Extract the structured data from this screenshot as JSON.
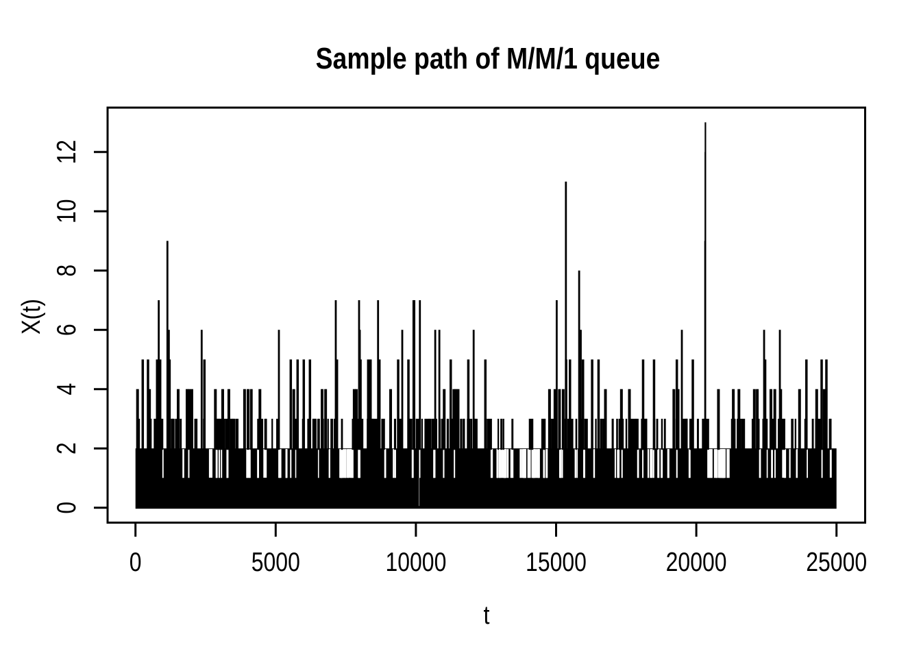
{
  "figure": {
    "background": "#ffffff",
    "foreground": "#000000"
  },
  "chart_data": {
    "type": "line",
    "subtype": "step-function-sample-path",
    "title": "Sample path of M/M/1 queue",
    "xlabel": "t",
    "ylabel": "X(t)",
    "xlim": [
      0,
      25000
    ],
    "ylim": [
      0,
      13
    ],
    "x_ticks": [
      0,
      5000,
      10000,
      15000,
      20000,
      25000
    ],
    "x_tick_labels": [
      "0",
      "5000",
      "10000",
      "15000",
      "20000",
      "25000"
    ],
    "y_ticks": [
      0,
      2,
      4,
      6,
      8,
      10,
      12
    ],
    "y_tick_labels": [
      "0",
      "2",
      "4",
      "6",
      "8",
      "10",
      "12"
    ],
    "grid": false,
    "legend": false,
    "color": "#000000",
    "background": "#ffffff",
    "description": "Integer-valued queue-length sample path X(t) over t in [0,25000]; the path oscillates densely between 0 and 2 (solid black band), makes very frequent short excursions to 3, frequent excursions to 4-5, and rare tall spikes listed in major_spikes. Maximum value 13 near t=20325.",
    "base_band": {
      "solid_from": 0,
      "solid_to": 2,
      "note": "nearly solid black from X=0 to X=2 with thin white slits between steps"
    },
    "major_spikes": [
      [
        73,
        4
      ],
      [
        259,
        5
      ],
      [
        447,
        5
      ],
      [
        500,
        4
      ],
      [
        772,
        5
      ],
      [
        830,
        7
      ],
      [
        880,
        5
      ],
      [
        1139,
        9
      ],
      [
        1190,
        6
      ],
      [
        1215,
        5
      ],
      [
        1523,
        4
      ],
      [
        1840,
        4
      ],
      [
        1915,
        4
      ],
      [
        2010,
        4
      ],
      [
        2361,
        6
      ],
      [
        2459,
        5
      ],
      [
        2850,
        4
      ],
      [
        3110,
        4
      ],
      [
        3330,
        4
      ],
      [
        3890,
        4
      ],
      [
        4015,
        4
      ],
      [
        4130,
        4
      ],
      [
        4438,
        4
      ],
      [
        5115,
        6
      ],
      [
        5538,
        5
      ],
      [
        5645,
        4
      ],
      [
        5782,
        5
      ],
      [
        6002,
        5
      ],
      [
        6222,
        5
      ],
      [
        6655,
        4
      ],
      [
        6780,
        4
      ],
      [
        7143,
        7
      ],
      [
        7185,
        5
      ],
      [
        7800,
        4
      ],
      [
        7877,
        4
      ],
      [
        7974,
        7
      ],
      [
        8000,
        6
      ],
      [
        8025,
        5
      ],
      [
        8300,
        5
      ],
      [
        8383,
        5
      ],
      [
        8651,
        7
      ],
      [
        8700,
        5
      ],
      [
        9099,
        4
      ],
      [
        9368,
        5
      ],
      [
        9514,
        6
      ],
      [
        9734,
        5
      ],
      [
        9913,
        7
      ],
      [
        9945,
        7
      ],
      [
        10143,
        7
      ],
      [
        10690,
        6
      ],
      [
        10837,
        6
      ],
      [
        11010,
        4
      ],
      [
        11243,
        5
      ],
      [
        11355,
        4
      ],
      [
        11430,
        4
      ],
      [
        11505,
        4
      ],
      [
        11870,
        5
      ],
      [
        12060,
        6
      ],
      [
        12478,
        5
      ],
      [
        14765,
        4
      ],
      [
        14960,
        4
      ],
      [
        15022,
        7
      ],
      [
        15120,
        4
      ],
      [
        15254,
        4
      ],
      [
        15350,
        11
      ],
      [
        15358,
        5
      ],
      [
        15495,
        5
      ],
      [
        15822,
        8
      ],
      [
        15880,
        6
      ],
      [
        15960,
        5
      ],
      [
        16286,
        5
      ],
      [
        16514,
        5
      ],
      [
        16760,
        4
      ],
      [
        17330,
        4
      ],
      [
        17615,
        4
      ],
      [
        18103,
        5
      ],
      [
        18493,
        5
      ],
      [
        19200,
        4
      ],
      [
        19306,
        5
      ],
      [
        19352,
        4
      ],
      [
        19485,
        6
      ],
      [
        19876,
        5
      ],
      [
        20318,
        9
      ],
      [
        20322,
        12
      ],
      [
        20325,
        13
      ],
      [
        20790,
        4
      ],
      [
        21320,
        4
      ],
      [
        21520,
        4
      ],
      [
        22070,
        4
      ],
      [
        22175,
        4
      ],
      [
        22418,
        6
      ],
      [
        22455,
        5
      ],
      [
        22660,
        4
      ],
      [
        22800,
        4
      ],
      [
        22980,
        6
      ],
      [
        23010,
        4
      ],
      [
        23682,
        4
      ],
      [
        23927,
        5
      ],
      [
        24293,
        4
      ],
      [
        24470,
        5
      ],
      [
        24560,
        4
      ],
      [
        24640,
        5
      ]
    ],
    "band_gaps": [
      [
        2620,
        2745
      ],
      [
        4560,
        4680
      ],
      [
        7290,
        7430
      ],
      [
        7560,
        7700
      ],
      [
        20395,
        20480
      ],
      [
        23060,
        23180
      ],
      [
        24760,
        24830
      ]
    ],
    "deep_gap": [
      10112,
      10126
    ],
    "texture": {
      "level3_line_count": 205,
      "slit_count": 78,
      "sparse_regions": [
        [
          12650,
          14700
        ],
        [
          20380,
          21260
        ],
        [
          7250,
          7750
        ]
      ],
      "seed": 20325
    }
  }
}
